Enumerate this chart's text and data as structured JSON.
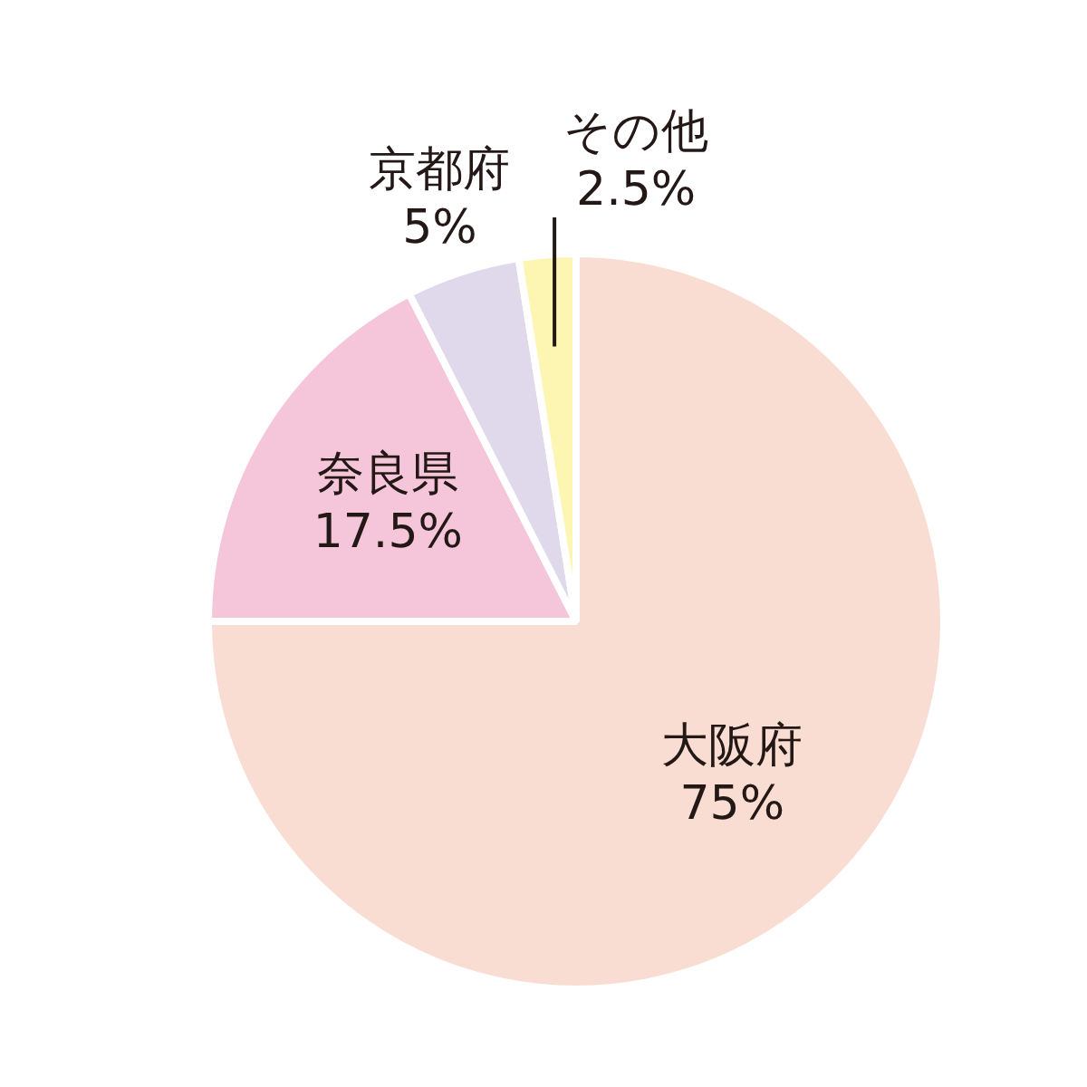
{
  "chart_data": {
    "type": "pie",
    "categories": [
      "大阪府",
      "奈良県",
      "京都府",
      "その他"
    ],
    "values": [
      75,
      17.5,
      5,
      2.5
    ],
    "colors": [
      "#f9dcd2",
      "#f5c6da",
      "#e0d9ec",
      "#fdf6b3"
    ],
    "value_labels": [
      "75%",
      "17.5%",
      "5%",
      "2.5%"
    ],
    "legend": false
  }
}
